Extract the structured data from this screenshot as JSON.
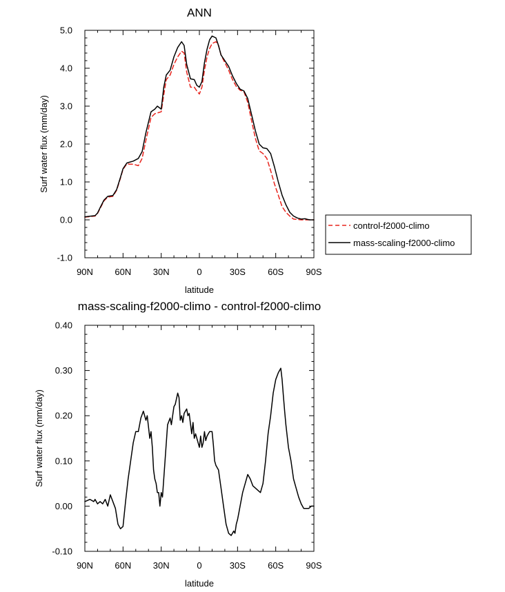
{
  "chart_data": [
    {
      "type": "line",
      "title": "ANN",
      "xlabel": "latitude",
      "ylabel": "Surf water flux (mm/day)",
      "xlim": [
        90,
        -90
      ],
      "ylim": [
        -1.0,
        5.0
      ],
      "xticks": [
        90,
        60,
        30,
        0,
        -30,
        -60,
        -90
      ],
      "xtick_labels": [
        "90N",
        "60N",
        "30N",
        "0",
        "30S",
        "60S",
        "90S"
      ],
      "yticks": [
        -1.0,
        0.0,
        1.0,
        2.0,
        3.0,
        4.0,
        5.0
      ],
      "ytick_labels": [
        "-1.0",
        "0.0",
        "1.0",
        "2.0",
        "3.0",
        "4.0",
        "5.0"
      ],
      "legend": {
        "position": "right",
        "entries": [
          "control-f2000-climo",
          "mass-scaling-f2000-climo"
        ]
      },
      "series": [
        {
          "name": "control-f2000-climo",
          "color": "#e8231c",
          "dash": "dashed",
          "x": [
            90,
            85,
            82,
            80,
            78,
            75,
            72,
            68,
            65,
            62,
            60,
            57,
            55,
            52,
            48,
            45,
            42,
            38,
            35,
            33,
            30,
            28,
            26,
            23,
            20,
            17,
            14,
            12,
            10,
            7,
            4,
            2,
            0,
            -2,
            -4,
            -6,
            -8,
            -10,
            -13,
            -15,
            -17,
            -20,
            -23,
            -26,
            -29,
            -32,
            -35,
            -38,
            -41,
            -44,
            -47,
            -50,
            -53,
            -56,
            -59,
            -62,
            -65,
            -68,
            -71,
            -74,
            -77,
            -80,
            -83,
            -85,
            -87,
            -90
          ],
          "values": [
            0.07,
            0.09,
            0.1,
            0.17,
            0.3,
            0.5,
            0.6,
            0.62,
            0.78,
            1.1,
            1.33,
            1.48,
            1.47,
            1.47,
            1.43,
            1.62,
            2.1,
            2.7,
            2.8,
            2.82,
            2.85,
            3.3,
            3.7,
            3.82,
            4.1,
            4.3,
            4.45,
            4.4,
            3.9,
            3.5,
            3.5,
            3.4,
            3.32,
            3.5,
            3.95,
            4.3,
            4.52,
            4.65,
            4.7,
            4.6,
            4.35,
            4.15,
            3.95,
            3.7,
            3.52,
            3.42,
            3.38,
            3.1,
            2.62,
            2.15,
            1.82,
            1.75,
            1.62,
            1.3,
            0.95,
            0.65,
            0.35,
            0.2,
            0.1,
            0.02,
            0.01,
            0.0,
            0.0,
            0.0,
            0.0,
            0.0
          ]
        },
        {
          "name": "mass-scaling-f2000-climo",
          "color": "#000000",
          "dash": "solid",
          "x": [
            90,
            85,
            82,
            80,
            78,
            75,
            72,
            68,
            65,
            62,
            60,
            57,
            55,
            52,
            48,
            45,
            42,
            38,
            35,
            33,
            30,
            28,
            26,
            23,
            20,
            17,
            14,
            12,
            10,
            7,
            4,
            2,
            0,
            -2,
            -4,
            -6,
            -8,
            -10,
            -13,
            -15,
            -17,
            -20,
            -23,
            -26,
            -29,
            -32,
            -35,
            -38,
            -41,
            -44,
            -47,
            -50,
            -53,
            -56,
            -59,
            -62,
            -65,
            -68,
            -71,
            -74,
            -77,
            -80,
            -83,
            -85,
            -87,
            -90
          ],
          "values": [
            0.08,
            0.1,
            0.11,
            0.18,
            0.32,
            0.52,
            0.62,
            0.64,
            0.8,
            1.12,
            1.35,
            1.5,
            1.52,
            1.55,
            1.62,
            1.8,
            2.3,
            2.85,
            2.92,
            3.0,
            2.92,
            3.5,
            3.82,
            3.95,
            4.3,
            4.55,
            4.7,
            4.6,
            4.1,
            3.72,
            3.7,
            3.55,
            3.5,
            3.65,
            4.15,
            4.5,
            4.75,
            4.85,
            4.8,
            4.6,
            4.35,
            4.2,
            4.05,
            3.8,
            3.6,
            3.45,
            3.4,
            3.2,
            2.78,
            2.35,
            2.0,
            1.9,
            1.88,
            1.75,
            1.4,
            1.0,
            0.65,
            0.4,
            0.2,
            0.1,
            0.05,
            0.02,
            0.03,
            0.01,
            0.0,
            0.0
          ]
        }
      ]
    },
    {
      "type": "line",
      "title": "mass-scaling-f2000-climo - control-f2000-climo",
      "xlabel": "latitude",
      "ylabel": "Surf water flux (mm/day)",
      "xlim": [
        90,
        -90
      ],
      "ylim": [
        -0.1,
        0.4
      ],
      "xticks": [
        90,
        60,
        30,
        0,
        -30,
        -60,
        -90
      ],
      "xtick_labels": [
        "90N",
        "60N",
        "30N",
        "0",
        "30S",
        "60S",
        "90S"
      ],
      "yticks": [
        -0.1,
        0.0,
        0.1,
        0.2,
        0.3,
        0.4
      ],
      "ytick_labels": [
        "-0.10",
        "0.00",
        "0.10",
        "0.20",
        "0.30",
        "0.40"
      ],
      "series": [
        {
          "name": "mass-scaling-f2000-climo - control-f2000-climo",
          "color": "#000000",
          "dash": "solid",
          "x": [
            90,
            86,
            83,
            82,
            80,
            78,
            76,
            74,
            72,
            70,
            68,
            66,
            64,
            62,
            60,
            58,
            56,
            54,
            52,
            50,
            48,
            46,
            44,
            42,
            41,
            39,
            38,
            37,
            36,
            35,
            34,
            33,
            32,
            31,
            30,
            29,
            27,
            25,
            23,
            22,
            20,
            19,
            17,
            16,
            15,
            14,
            13,
            12,
            11,
            10,
            9,
            8,
            6,
            5,
            4,
            3,
            1,
            0,
            -1,
            -2,
            -3,
            -4,
            -5,
            -6,
            -8,
            -9,
            -10,
            -11,
            -12,
            -13,
            -15,
            -17,
            -19,
            -21,
            -23,
            -25,
            -27,
            -28,
            -29,
            -30,
            -31,
            -32,
            -34,
            -36,
            -38,
            -40,
            -42,
            -44,
            -46,
            -48,
            -50,
            -52,
            -54,
            -56,
            -58,
            -60,
            -62,
            -63,
            -64,
            -65,
            -66,
            -67,
            -68,
            -70,
            -72,
            -74,
            -76,
            -78,
            -80,
            -81,
            -82,
            -84,
            -86,
            -88,
            -90
          ],
          "values": [
            0.01,
            0.015,
            0.01,
            0.015,
            0.005,
            0.01,
            0.005,
            0.015,
            0.0,
            0.025,
            0.01,
            -0.005,
            -0.04,
            -0.05,
            -0.045,
            0.01,
            0.06,
            0.1,
            0.14,
            0.165,
            0.165,
            0.195,
            0.21,
            0.19,
            0.2,
            0.15,
            0.165,
            0.13,
            0.08,
            0.06,
            0.05,
            0.03,
            0.03,
            0.0,
            0.03,
            0.02,
            0.1,
            0.18,
            0.195,
            0.18,
            0.22,
            0.225,
            0.25,
            0.24,
            0.19,
            0.2,
            0.185,
            0.205,
            0.21,
            0.215,
            0.2,
            0.205,
            0.16,
            0.185,
            0.15,
            0.16,
            0.14,
            0.13,
            0.155,
            0.13,
            0.14,
            0.165,
            0.145,
            0.155,
            0.165,
            0.165,
            0.165,
            0.135,
            0.1,
            0.09,
            0.08,
            0.04,
            0.0,
            -0.04,
            -0.06,
            -0.065,
            -0.055,
            -0.06,
            -0.04,
            -0.03,
            -0.015,
            0.0,
            0.03,
            0.05,
            0.07,
            0.06,
            0.045,
            0.04,
            0.035,
            0.03,
            0.05,
            0.1,
            0.16,
            0.2,
            0.25,
            0.28,
            0.295,
            0.3,
            0.305,
            0.28,
            0.245,
            0.21,
            0.18,
            0.13,
            0.1,
            0.06,
            0.04,
            0.02,
            0.005,
            0.0,
            -0.005,
            -0.005,
            -0.005,
            0.0,
            0.0
          ]
        }
      ]
    }
  ]
}
